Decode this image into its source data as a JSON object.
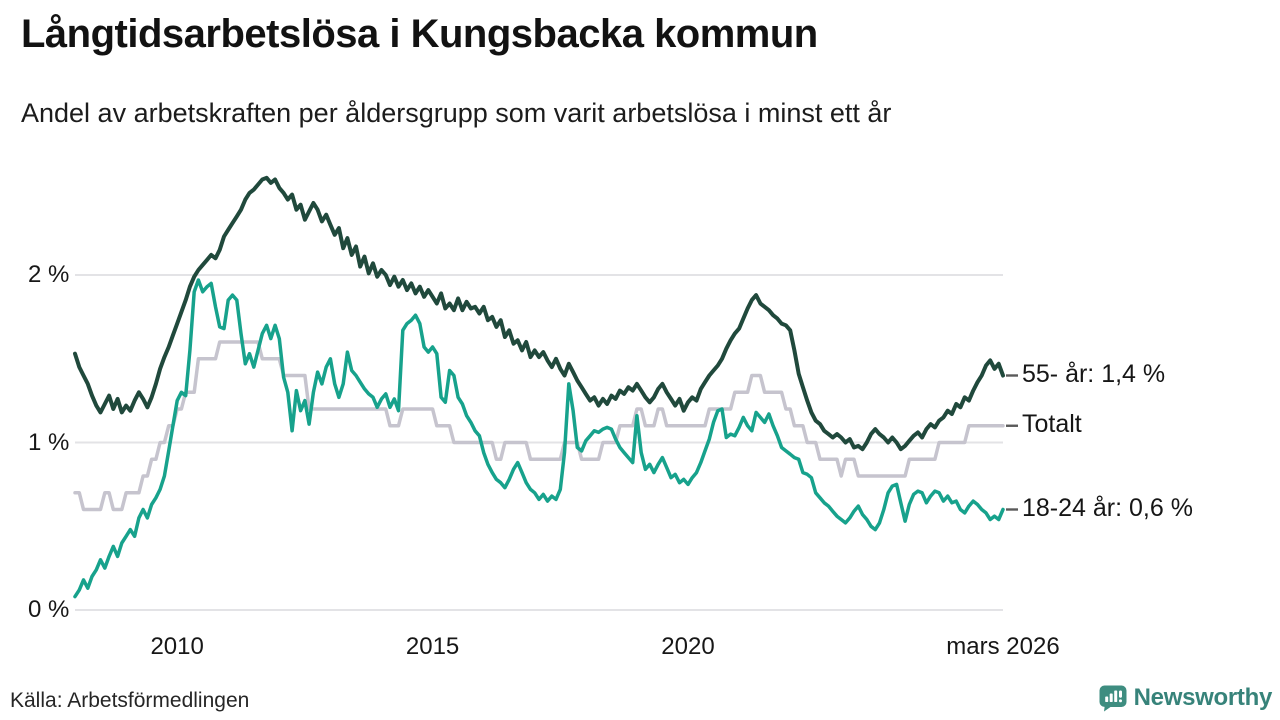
{
  "header": {
    "title": "Långtidsarbetslösa i Kungsbacka kommun",
    "subtitle": "Andel av arbetskraften per åldersgrupp som varit arbetslösa i minst ett år"
  },
  "footer": {
    "source": "Källa: Arbetsförmedlingen",
    "brand": "Newsworthy"
  },
  "colors": {
    "background": "#ffffff",
    "title_text": "#121212",
    "axis_text": "#171717",
    "gridline": "#e3e3e6",
    "leader_dash": "#5a5a5a",
    "series_55": "#20493c",
    "series_total": "#c6c4ce",
    "series_1824": "#17a28c",
    "brand_teal": "#3e8d80"
  },
  "chart_data": {
    "type": "line",
    "title": "Långtidsarbetslösa i Kungsbacka kommun",
    "subtitle": "Andel av arbetskraften per åldersgrupp som varit arbetslösa i minst ett år",
    "source": "Källa: Arbetsförmedlingen",
    "unit": "%",
    "frequency": "monthly",
    "period_start": "2008-01",
    "period_end": "2026-03",
    "x_axis": {
      "range_years": [
        2008.0,
        2026.1667
      ],
      "ticks": [
        {
          "value": 2010.0,
          "label": "2010"
        },
        {
          "value": 2015.0,
          "label": "2015"
        },
        {
          "value": 2020.0,
          "label": "2020"
        },
        {
          "value": 2026.1667,
          "label": "mars 2026"
        }
      ]
    },
    "y_axis": {
      "range": [
        0,
        2.7
      ],
      "grid": true,
      "ticks": [
        {
          "value": 0,
          "label": "0 %"
        },
        {
          "value": 1,
          "label": "1 %"
        },
        {
          "value": 2,
          "label": "2 %"
        }
      ]
    },
    "legend_position": "end-of-line labels, right side",
    "series": [
      {
        "id": "age55",
        "name": "55- år",
        "end_label": "55- år: 1,4 %",
        "last_value": 1.4,
        "color": "#20493c",
        "start_year": 2008,
        "values": [
          1.53,
          1.45,
          1.4,
          1.35,
          1.28,
          1.22,
          1.18,
          1.23,
          1.28,
          1.2,
          1.26,
          1.18,
          1.22,
          1.19,
          1.25,
          1.3,
          1.26,
          1.21,
          1.27,
          1.35,
          1.44,
          1.51,
          1.57,
          1.64,
          1.71,
          1.78,
          1.85,
          1.93,
          1.99,
          2.03,
          2.06,
          2.09,
          2.12,
          2.1,
          2.15,
          2.23,
          2.27,
          2.31,
          2.35,
          2.39,
          2.45,
          2.49,
          2.51,
          2.54,
          2.57,
          2.58,
          2.55,
          2.57,
          2.52,
          2.49,
          2.45,
          2.48,
          2.39,
          2.42,
          2.33,
          2.38,
          2.43,
          2.39,
          2.32,
          2.36,
          2.3,
          2.24,
          2.28,
          2.16,
          2.22,
          2.12,
          2.17,
          2.05,
          2.11,
          2.01,
          2.07,
          1.99,
          2.03,
          2.0,
          1.94,
          1.99,
          1.93,
          1.97,
          1.91,
          1.95,
          1.89,
          1.93,
          1.87,
          1.91,
          1.87,
          1.83,
          1.89,
          1.8,
          1.83,
          1.79,
          1.86,
          1.79,
          1.84,
          1.8,
          1.81,
          1.77,
          1.81,
          1.73,
          1.75,
          1.69,
          1.73,
          1.63,
          1.67,
          1.59,
          1.61,
          1.55,
          1.6,
          1.51,
          1.55,
          1.51,
          1.54,
          1.49,
          1.45,
          1.5,
          1.44,
          1.4,
          1.47,
          1.42,
          1.37,
          1.33,
          1.29,
          1.25,
          1.27,
          1.22,
          1.26,
          1.23,
          1.28,
          1.26,
          1.31,
          1.29,
          1.33,
          1.31,
          1.35,
          1.31,
          1.27,
          1.24,
          1.27,
          1.32,
          1.35,
          1.3,
          1.26,
          1.22,
          1.26,
          1.19,
          1.24,
          1.27,
          1.25,
          1.32,
          1.36,
          1.4,
          1.43,
          1.46,
          1.5,
          1.56,
          1.61,
          1.65,
          1.68,
          1.74,
          1.8,
          1.85,
          1.88,
          1.83,
          1.81,
          1.79,
          1.76,
          1.74,
          1.71,
          1.7,
          1.67,
          1.55,
          1.41,
          1.33,
          1.25,
          1.18,
          1.13,
          1.11,
          1.07,
          1.05,
          1.03,
          1.05,
          1.03,
          1.0,
          1.02,
          0.97,
          0.98,
          0.96,
          1.0,
          1.05,
          1.08,
          1.05,
          1.03,
          1.0,
          1.03,
          1.0,
          0.96,
          0.98,
          1.01,
          1.04,
          1.06,
          1.03,
          1.08,
          1.11,
          1.09,
          1.13,
          1.15,
          1.19,
          1.17,
          1.23,
          1.21,
          1.27,
          1.25,
          1.31,
          1.36,
          1.4,
          1.46,
          1.49,
          1.44,
          1.47,
          1.4
        ]
      },
      {
        "id": "total",
        "name": "Totalt",
        "end_label": "Totalt",
        "last_value": 1.1,
        "color": "#c6c4ce",
        "start_year": 2008,
        "values": [
          0.7,
          0.7,
          0.6,
          0.6,
          0.6,
          0.6,
          0.6,
          0.7,
          0.7,
          0.6,
          0.6,
          0.6,
          0.7,
          0.7,
          0.7,
          0.7,
          0.8,
          0.8,
          0.9,
          0.9,
          1.0,
          1.0,
          1.1,
          1.1,
          1.2,
          1.2,
          1.3,
          1.3,
          1.3,
          1.5,
          1.5,
          1.5,
          1.5,
          1.5,
          1.6,
          1.6,
          1.6,
          1.6,
          1.6,
          1.6,
          1.6,
          1.6,
          1.6,
          1.6,
          1.5,
          1.5,
          1.5,
          1.5,
          1.5,
          1.4,
          1.4,
          1.4,
          1.4,
          1.4,
          1.4,
          1.2,
          1.2,
          1.2,
          1.2,
          1.2,
          1.2,
          1.2,
          1.2,
          1.2,
          1.2,
          1.2,
          1.2,
          1.2,
          1.2,
          1.2,
          1.2,
          1.2,
          1.2,
          1.2,
          1.1,
          1.1,
          1.1,
          1.2,
          1.2,
          1.2,
          1.2,
          1.2,
          1.2,
          1.2,
          1.2,
          1.1,
          1.1,
          1.1,
          1.1,
          1.0,
          1.0,
          1.0,
          1.0,
          1.0,
          1.0,
          1.0,
          1.0,
          1.0,
          1.0,
          0.9,
          0.9,
          1.0,
          1.0,
          1.0,
          1.0,
          1.0,
          1.0,
          0.9,
          0.9,
          0.9,
          0.9,
          0.9,
          0.9,
          0.9,
          0.9,
          1.0,
          1.0,
          1.0,
          1.0,
          0.9,
          0.9,
          0.9,
          0.9,
          0.9,
          1.0,
          1.0,
          1.0,
          1.0,
          1.1,
          1.1,
          1.1,
          1.1,
          1.2,
          1.2,
          1.1,
          1.1,
          1.1,
          1.2,
          1.2,
          1.1,
          1.1,
          1.1,
          1.1,
          1.1,
          1.1,
          1.1,
          1.1,
          1.1,
          1.1,
          1.2,
          1.2,
          1.2,
          1.2,
          1.2,
          1.2,
          1.3,
          1.3,
          1.3,
          1.3,
          1.4,
          1.4,
          1.4,
          1.3,
          1.3,
          1.3,
          1.3,
          1.3,
          1.2,
          1.2,
          1.1,
          1.1,
          1.1,
          1.0,
          1.0,
          1.0,
          0.9,
          0.9,
          0.9,
          0.9,
          0.9,
          0.8,
          0.9,
          0.9,
          0.9,
          0.8,
          0.8,
          0.8,
          0.8,
          0.8,
          0.8,
          0.8,
          0.8,
          0.8,
          0.8,
          0.8,
          0.8,
          0.9,
          0.9,
          0.9,
          0.9,
          0.9,
          0.9,
          0.9,
          1.0,
          1.0,
          1.0,
          1.0,
          1.0,
          1.0,
          1.0,
          1.1,
          1.1,
          1.1,
          1.1,
          1.1,
          1.1,
          1.1,
          1.1,
          1.1
        ]
      },
      {
        "id": "age1824",
        "name": "18-24 år",
        "end_label": "18-24 år: 0,6 %",
        "last_value": 0.6,
        "color": "#17a28c",
        "start_year": 2008,
        "values": [
          0.08,
          0.12,
          0.18,
          0.13,
          0.2,
          0.24,
          0.3,
          0.25,
          0.32,
          0.38,
          0.32,
          0.4,
          0.44,
          0.48,
          0.44,
          0.55,
          0.6,
          0.55,
          0.63,
          0.67,
          0.72,
          0.8,
          0.95,
          1.1,
          1.25,
          1.3,
          1.28,
          1.55,
          1.9,
          1.97,
          1.9,
          1.93,
          1.95,
          1.81,
          1.69,
          1.68,
          1.85,
          1.88,
          1.85,
          1.65,
          1.47,
          1.53,
          1.45,
          1.55,
          1.65,
          1.7,
          1.62,
          1.7,
          1.62,
          1.39,
          1.3,
          1.07,
          1.31,
          1.19,
          1.25,
          1.11,
          1.3,
          1.42,
          1.35,
          1.45,
          1.5,
          1.35,
          1.27,
          1.35,
          1.54,
          1.43,
          1.4,
          1.36,
          1.32,
          1.29,
          1.27,
          1.21,
          1.26,
          1.29,
          1.21,
          1.26,
          1.19,
          1.67,
          1.71,
          1.73,
          1.76,
          1.71,
          1.57,
          1.54,
          1.57,
          1.53,
          1.27,
          1.24,
          1.43,
          1.4,
          1.27,
          1.23,
          1.16,
          1.12,
          1.07,
          1.04,
          0.94,
          0.87,
          0.82,
          0.78,
          0.76,
          0.73,
          0.78,
          0.84,
          0.88,
          0.82,
          0.76,
          0.72,
          0.7,
          0.66,
          0.69,
          0.65,
          0.68,
          0.66,
          0.72,
          0.94,
          1.35,
          1.19,
          0.97,
          0.95,
          1.01,
          1.04,
          1.07,
          1.06,
          1.08,
          1.09,
          1.08,
          1.02,
          0.97,
          0.94,
          0.91,
          0.88,
          1.16,
          0.94,
          0.84,
          0.87,
          0.82,
          0.87,
          0.91,
          0.85,
          0.79,
          0.81,
          0.76,
          0.78,
          0.75,
          0.79,
          0.82,
          0.88,
          0.95,
          1.02,
          1.12,
          1.19,
          1.2,
          1.03,
          1.05,
          1.04,
          1.09,
          1.15,
          1.1,
          1.07,
          1.18,
          1.15,
          1.12,
          1.17,
          1.1,
          1.04,
          0.97,
          0.95,
          0.93,
          0.91,
          0.9,
          0.82,
          0.81,
          0.79,
          0.7,
          0.67,
          0.64,
          0.62,
          0.59,
          0.56,
          0.54,
          0.52,
          0.55,
          0.59,
          0.62,
          0.57,
          0.54,
          0.5,
          0.48,
          0.52,
          0.6,
          0.7,
          0.74,
          0.75,
          0.64,
          0.53,
          0.63,
          0.69,
          0.71,
          0.7,
          0.64,
          0.68,
          0.71,
          0.7,
          0.65,
          0.68,
          0.64,
          0.65,
          0.6,
          0.58,
          0.62,
          0.65,
          0.63,
          0.6,
          0.58,
          0.54,
          0.56,
          0.54,
          0.6
        ]
      }
    ]
  }
}
